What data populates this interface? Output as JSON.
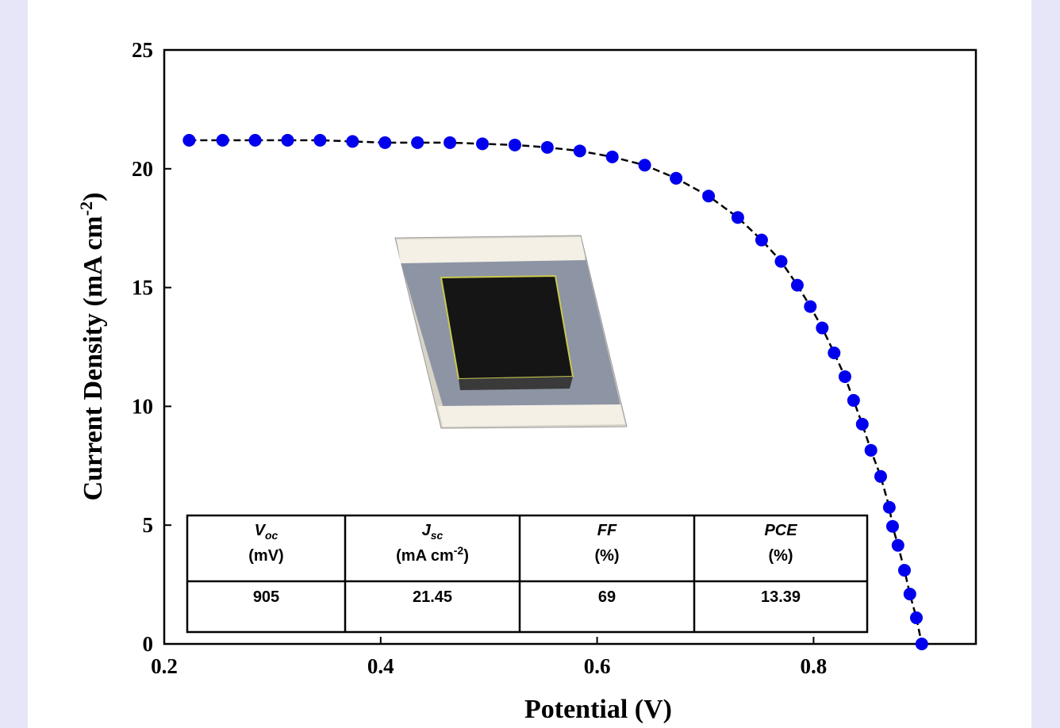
{
  "chart_data": {
    "type": "line",
    "x_label": "Potential (V)",
    "y_label": {
      "text": "Current Density (mA cm",
      "sup": "-2",
      "end": ")"
    },
    "xlim": [
      0.2,
      0.95
    ],
    "ylim": [
      0,
      25
    ],
    "xticks": [
      {
        "value": 0.2,
        "label": "0.2"
      },
      {
        "value": 0.4,
        "label": "0.4"
      },
      {
        "value": 0.6,
        "label": "0.6"
      },
      {
        "value": 0.8,
        "label": "0.8"
      }
    ],
    "yticks": [
      0,
      5,
      10,
      15,
      20,
      25
    ],
    "series": [
      {
        "color": "#0000ee",
        "line_color": "#000000",
        "x": [
          0.223,
          0.254,
          0.284,
          0.314,
          0.344,
          0.374,
          0.404,
          0.434,
          0.464,
          0.494,
          0.524,
          0.554,
          0.584,
          0.614,
          0.644,
          0.673,
          0.703,
          0.73,
          0.752,
          0.77,
          0.785,
          0.797,
          0.808,
          0.819,
          0.829,
          0.837,
          0.845,
          0.853,
          0.862,
          0.87,
          0.873,
          0.878,
          0.884,
          0.889,
          0.895,
          0.9
        ],
        "values": [
          21.2,
          21.2,
          21.2,
          21.2,
          21.2,
          21.15,
          21.1,
          21.1,
          21.1,
          21.05,
          21.0,
          20.9,
          20.75,
          20.5,
          20.15,
          19.6,
          18.85,
          17.95,
          17.0,
          16.1,
          15.1,
          14.2,
          13.3,
          12.25,
          11.25,
          10.25,
          9.25,
          8.15,
          7.05,
          5.75,
          4.95,
          4.15,
          3.1,
          2.1,
          1.1,
          0
        ]
      }
    ],
    "table": {
      "headers": [
        {
          "symbol": "V",
          "sub": "oc",
          "unit": "(mV)"
        },
        {
          "symbol": "J",
          "sub": "sc",
          "unit": "(mA cm",
          "unit_sup": "-2",
          "unit_end": ")"
        },
        {
          "symbol": "FF",
          "unit": "(%)"
        },
        {
          "symbol": "PCE",
          "unit": "(%)"
        }
      ],
      "rows": [
        [
          "905",
          "21.45",
          "69",
          "13.39"
        ]
      ]
    }
  }
}
